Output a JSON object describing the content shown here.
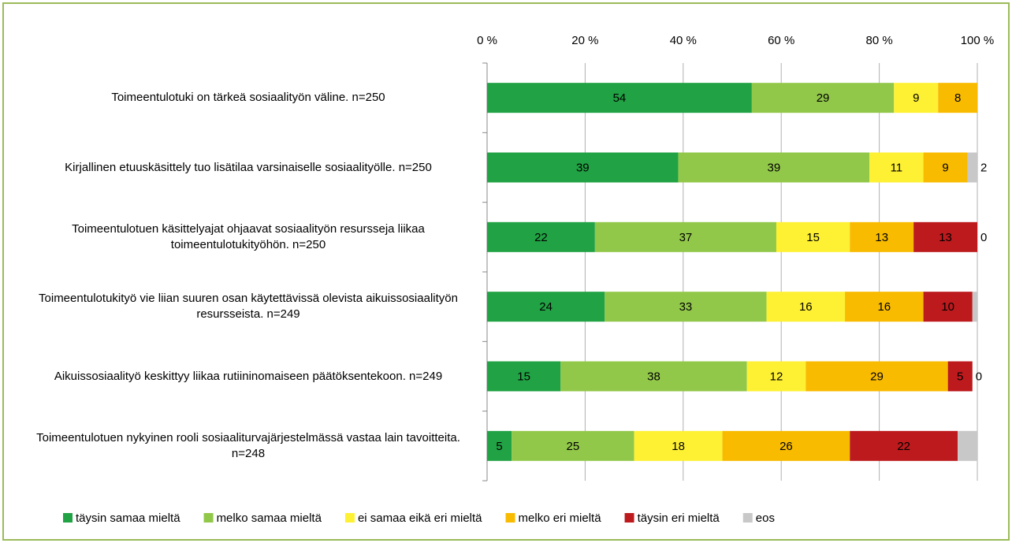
{
  "chart_data": {
    "type": "stacked_bar_horizontal",
    "categories": [
      "Toimeentulotuki on tärkeä sosiaalityön väline. n=250",
      "Kirjallinen etuuskäsittely tuo lisätilaa varsinaiselle sosiaalityölle. n=250",
      "Toimeentulotuen käsittelyajat ohjaavat sosiaalityön resursseja liikaa toimeentulotukityöhön. n=250",
      "Toimeentulotukityö vie liian suuren osan käytettävissä olevista aikuissosiaalityön resursseista. n=249",
      "Aikuissosiaalityö keskittyy liikaa rutiininomaiseen päätöksentekoon. n=249",
      "Toimeentulotuen nykyinen rooli sosiaaliturvajärjestelmässä vastaa lain tavoitteita. n=248"
    ],
    "series": [
      {
        "name": "täysin samaa mieltä",
        "color": "#21a244",
        "values": [
          54,
          39,
          22,
          24,
          15,
          5
        ]
      },
      {
        "name": "melko samaa mieltä",
        "color": "#92c84a",
        "values": [
          29,
          39,
          37,
          33,
          38,
          25
        ]
      },
      {
        "name": "ei samaa eikä eri mieltä",
        "color": "#fef133",
        "values": [
          9,
          11,
          15,
          16,
          12,
          18
        ]
      },
      {
        "name": "melko eri mieltä",
        "color": "#f8bb00",
        "values": [
          8,
          9,
          13,
          16,
          29,
          26
        ]
      },
      {
        "name": "täysin eri mieltä",
        "color": "#bc1a1d",
        "values": [
          null,
          0,
          13,
          10,
          5,
          22
        ]
      },
      {
        "name": "eos",
        "color": "#c8c8c8",
        "values": [
          null,
          2,
          0,
          1,
          0,
          4
        ],
        "value_labels": [
          null,
          "2",
          "0",
          null,
          "0",
          null
        ]
      }
    ],
    "xlim": [
      0,
      100
    ],
    "xticks": [
      {
        "value": 0,
        "label": "0 %"
      },
      {
        "value": 20,
        "label": "20 %"
      },
      {
        "value": 40,
        "label": "40 %"
      },
      {
        "value": 60,
        "label": "60 %"
      },
      {
        "value": 80,
        "label": "80 %"
      },
      {
        "value": 100,
        "label": "100 %"
      }
    ],
    "grid": true,
    "legend": "bottom"
  }
}
